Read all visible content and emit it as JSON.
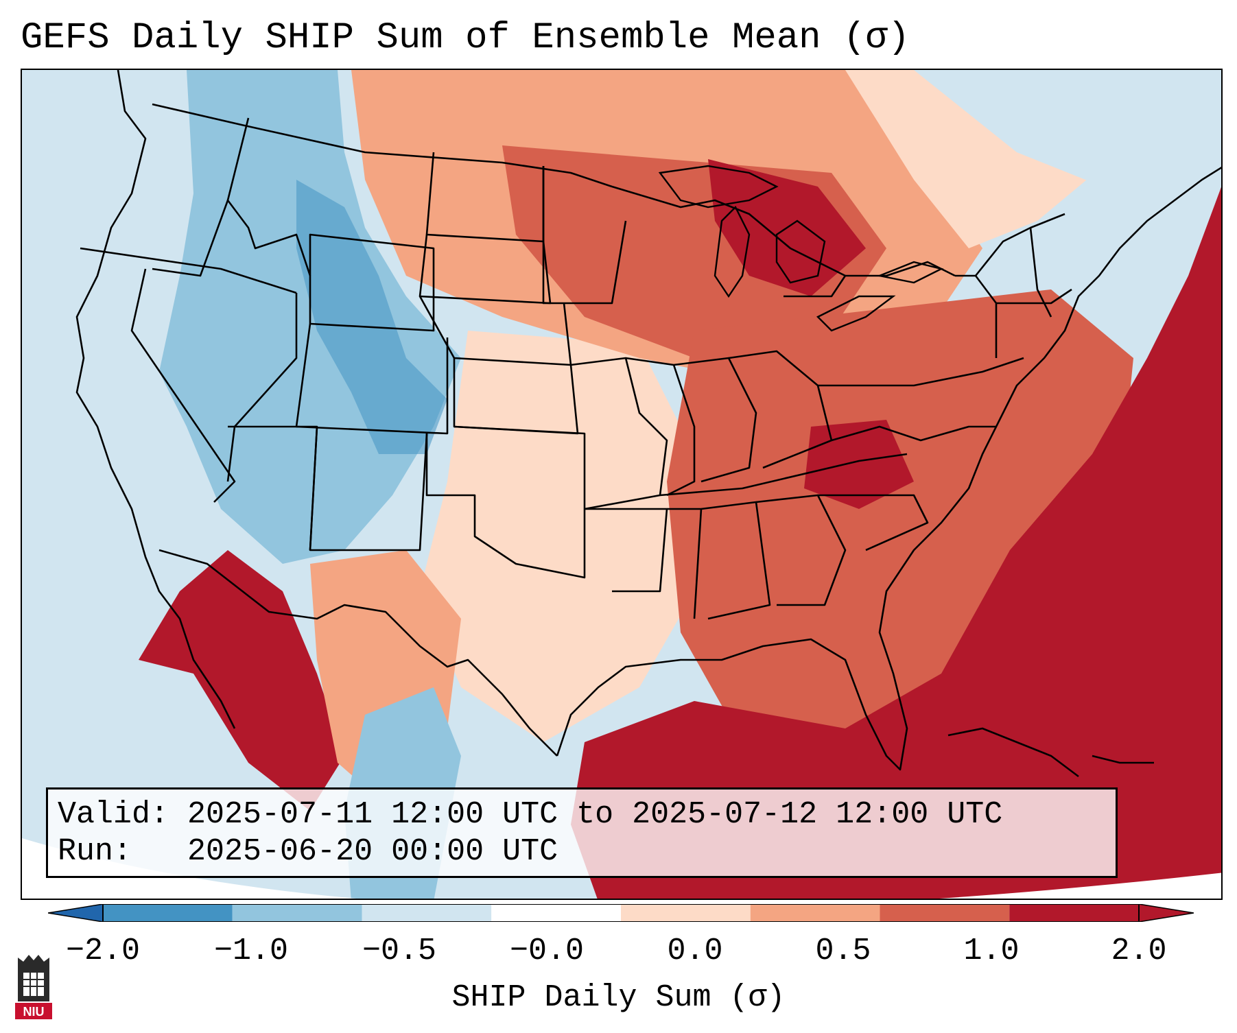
{
  "title": "GEFS Daily SHIP Sum of Ensemble Mean (σ)",
  "info": {
    "valid_line": "Valid: 2025-07-11 12:00 UTC to 2025-07-12 12:00 UTC",
    "run_line": "Run:   2025-06-20 00:00 UTC"
  },
  "colorbar": {
    "label": "SHIP Daily Sum (σ)",
    "ticks": [
      "−2.0",
      "−1.0",
      "−0.5",
      "−0.0",
      "0.0",
      "0.5",
      "1.0",
      "2.0"
    ],
    "colors": [
      "#4393c3",
      "#92c5de",
      "#d1e5f0",
      "#ffffff",
      "#fddbc7",
      "#f4a582",
      "#d6604d",
      "#b2182b"
    ],
    "extend_low_color": "#2166ac",
    "extend_high_color": "#b2182b"
  },
  "logo": {
    "text": "NIU",
    "icon": "niu-castle-logo-icon"
  }
}
